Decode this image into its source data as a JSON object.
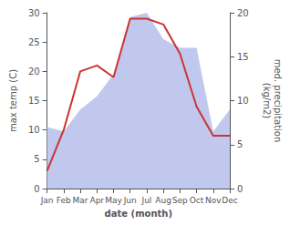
{
  "chart_data": {
    "type": "line",
    "categories": [
      "Jan",
      "Feb",
      "Mar",
      "Apr",
      "May",
      "Jun",
      "Jul",
      "Aug",
      "Sep",
      "Oct",
      "Nov",
      "Dec"
    ],
    "series": [
      {
        "type": "area",
        "color": "#c0c8ee",
        "axis": "y2",
        "values": [
          7,
          6.5,
          9,
          10.5,
          13,
          19.5,
          20,
          17,
          16,
          16,
          6.5,
          9
        ]
      },
      {
        "type": "line",
        "color": "#cc3333",
        "values": [
          3,
          10,
          20,
          21,
          19,
          29,
          29,
          28,
          23,
          14,
          9,
          9
        ]
      }
    ],
    "xlabel": "date (month)",
    "ylabel": "max temp (C)",
    "y2label": "med. precipitation\n(kg/m2)",
    "ylim": [
      0,
      30
    ],
    "yticks": [
      0,
      5,
      10,
      15,
      20,
      25,
      30
    ],
    "y2lim": [
      0,
      20
    ],
    "y2ticks": [
      0,
      5,
      10,
      15,
      20
    ],
    "grid": false
  }
}
